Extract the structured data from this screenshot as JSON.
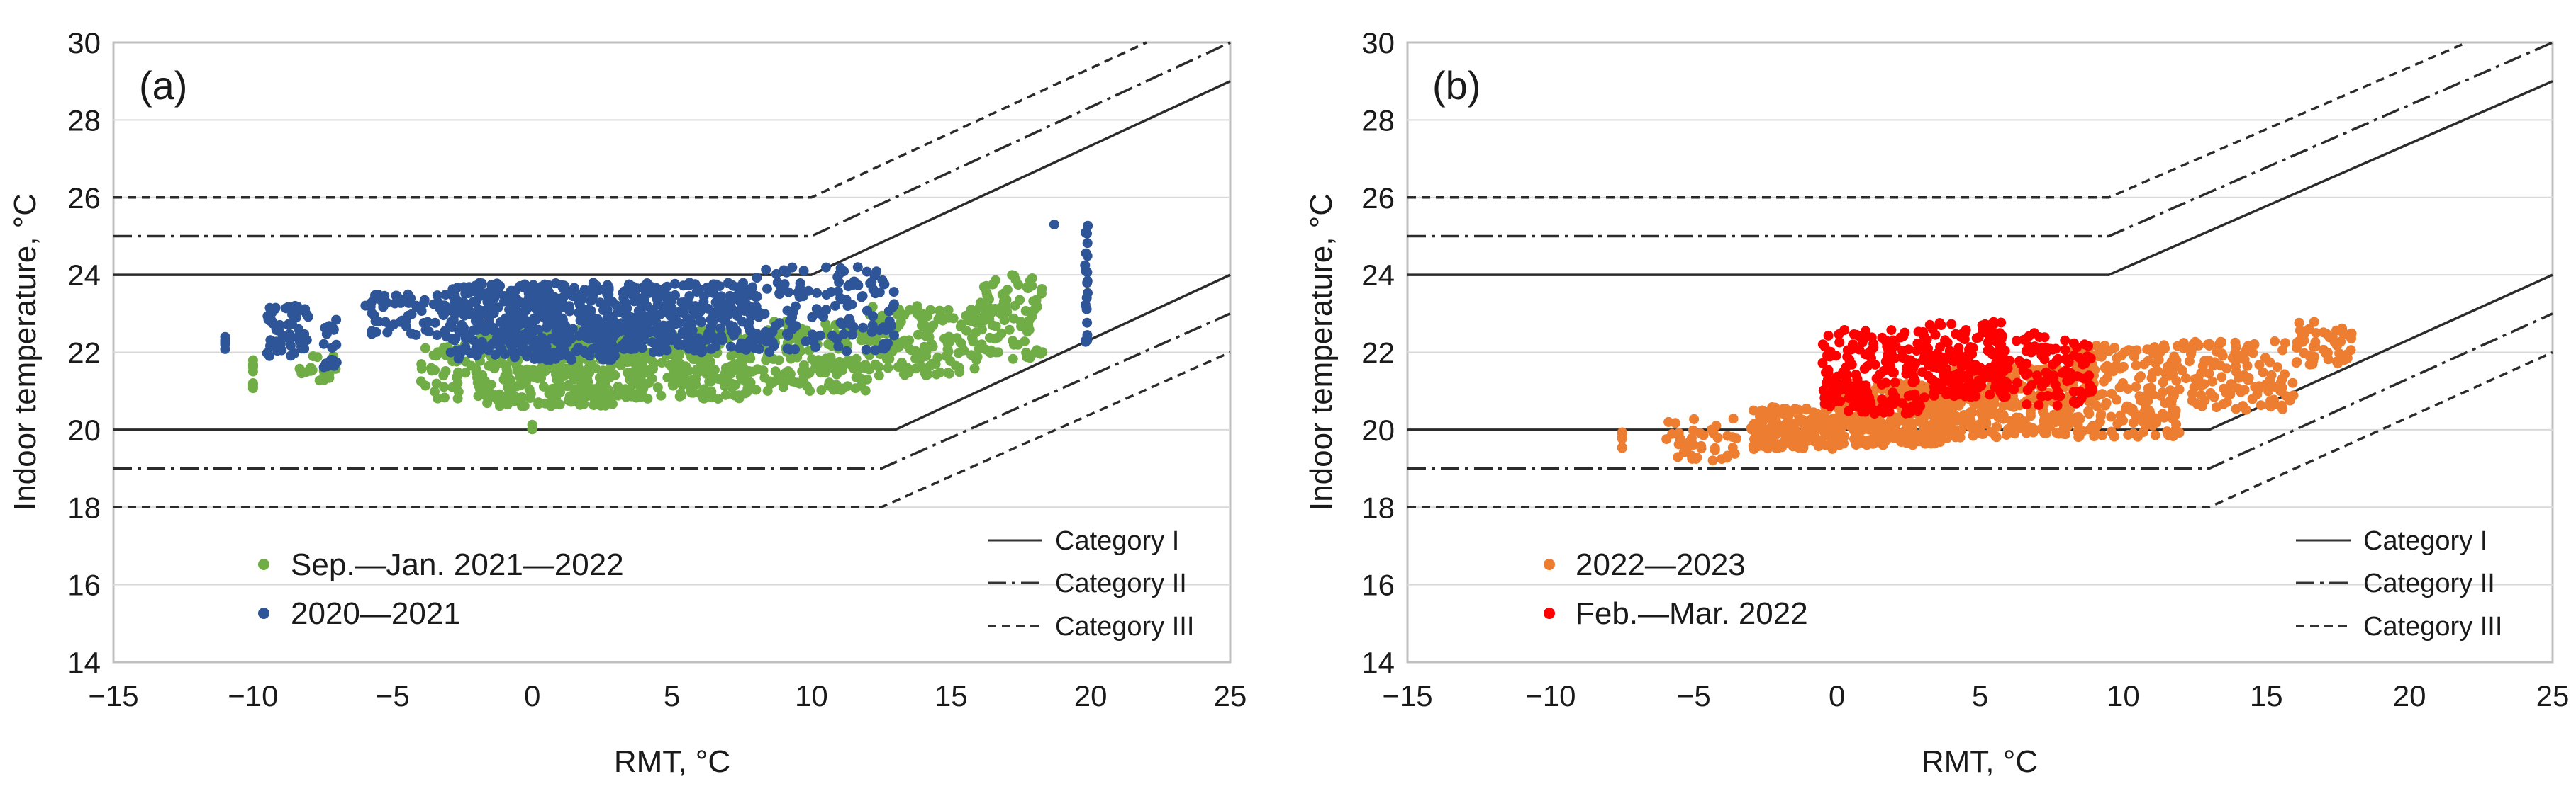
{
  "chart_data": [
    {
      "id": "a",
      "type": "scatter",
      "panel_label": "(a)",
      "xlabel": "RMT, °C",
      "ylabel": "Indoor temperature, °C",
      "xlim": [
        -15,
        25
      ],
      "ylim": [
        14,
        30
      ],
      "xticks": [
        "−15",
        "−10",
        "−5",
        "0",
        "5",
        "10",
        "15",
        "20",
        "25"
      ],
      "yticks": [
        "14",
        "16",
        "18",
        "20",
        "22",
        "24",
        "26",
        "28",
        "30"
      ],
      "lines": [
        {
          "name": "Category I",
          "style": "solid",
          "upper": [
            [
              -15,
              24
            ],
            [
              10,
              24
            ],
            [
              25,
              29
            ]
          ],
          "lower": [
            [
              -15,
              20
            ],
            [
              13,
              20
            ],
            [
              25,
              24
            ]
          ]
        },
        {
          "name": "Category II",
          "style": "dashdot",
          "upper": [
            [
              -15,
              25
            ],
            [
              10,
              25
            ],
            [
              25,
              30
            ]
          ],
          "lower": [
            [
              -15,
              19
            ],
            [
              12.5,
              19
            ],
            [
              25,
              23
            ]
          ]
        },
        {
          "name": "Category III",
          "style": "dashed",
          "upper": [
            [
              -15,
              26
            ],
            [
              10,
              26
            ],
            [
              22,
              30
            ]
          ],
          "lower": [
            [
              -15,
              18
            ],
            [
              12.5,
              18
            ],
            [
              25,
              22
            ]
          ]
        }
      ],
      "series": [
        {
          "name": "Sep.—Jan. 2021—2022",
          "color": "#70ad47",
          "clusters": [
            {
              "x": [
                -10,
                -10
              ],
              "y": [
                20.9,
                21.8
              ],
              "n": 10
            },
            {
              "x": [
                -8.5,
                -7
              ],
              "y": [
                21.2,
                22.0
              ],
              "n": 18
            },
            {
              "x": [
                -4,
                -2
              ],
              "y": [
                20.8,
                22.2
              ],
              "n": 40
            },
            {
              "x": [
                -2,
                3
              ],
              "y": [
                20.6,
                22.6
              ],
              "n": 320
            },
            {
              "x": [
                3,
                8
              ],
              "y": [
                20.8,
                22.6
              ],
              "n": 260
            },
            {
              "x": [
                8,
                12
              ],
              "y": [
                21.0,
                22.8
              ],
              "n": 160
            },
            {
              "x": [
                12,
                16
              ],
              "y": [
                21.4,
                23.2
              ],
              "n": 150
            },
            {
              "x": [
                16,
                18.3
              ],
              "y": [
                21.8,
                24.0
              ],
              "n": 90
            },
            {
              "x": [
                0,
                0
              ],
              "y": [
                19.7,
                20.2
              ],
              "n": 3
            }
          ]
        },
        {
          "name": "2020—2021",
          "color": "#2e5597",
          "clusters": [
            {
              "x": [
                -11,
                -11
              ],
              "y": [
                22.0,
                22.4
              ],
              "n": 8
            },
            {
              "x": [
                -9.5,
                -8
              ],
              "y": [
                21.9,
                23.2
              ],
              "n": 60
            },
            {
              "x": [
                -7.5,
                -7
              ],
              "y": [
                21.6,
                22.9
              ],
              "n": 20
            },
            {
              "x": [
                -6,
                -3
              ],
              "y": [
                22.4,
                23.5
              ],
              "n": 60
            },
            {
              "x": [
                -3,
                3
              ],
              "y": [
                21.8,
                23.8
              ],
              "n": 420
            },
            {
              "x": [
                3,
                8
              ],
              "y": [
                22.0,
                23.8
              ],
              "n": 320
            },
            {
              "x": [
                8,
                13
              ],
              "y": [
                22.0,
                24.2
              ],
              "n": 140
            },
            {
              "x": [
                18.7,
                18.7
              ],
              "y": [
                25.3,
                25.3
              ],
              "n": 1
            },
            {
              "x": [
                19.8,
                19.9
              ],
              "y": [
                21.8,
                25.5
              ],
              "n": 22
            }
          ]
        }
      ],
      "legend_series": [
        "Sep.—Jan. 2021—2022",
        "2020—2021"
      ],
      "legend_lines": [
        "Category I",
        "Category II",
        "Category III"
      ]
    },
    {
      "id": "b",
      "type": "scatter",
      "panel_label": "(b)",
      "xlabel": "RMT, °C",
      "ylabel": "Indoor temperature, °C",
      "xlim": [
        -15,
        25
      ],
      "ylim": [
        14,
        30
      ],
      "xticks": [
        "−15",
        "−10",
        "−5",
        "0",
        "5",
        "10",
        "15",
        "20",
        "25"
      ],
      "yticks": [
        "14",
        "16",
        "18",
        "20",
        "22",
        "24",
        "26",
        "28",
        "30"
      ],
      "lines": [
        {
          "name": "Category I",
          "style": "solid",
          "upper": [
            [
              -15,
              24
            ],
            [
              9.5,
              24
            ],
            [
              25,
              29
            ]
          ],
          "lower": [
            [
              -15,
              20
            ],
            [
              13,
              20
            ],
            [
              25,
              24
            ]
          ]
        },
        {
          "name": "Category II",
          "style": "dashdot",
          "upper": [
            [
              -15,
              25
            ],
            [
              9.5,
              25
            ],
            [
              25,
              30
            ]
          ],
          "lower": [
            [
              -15,
              19
            ],
            [
              13,
              19
            ],
            [
              25,
              23
            ]
          ]
        },
        {
          "name": "Category III",
          "style": "dashed",
          "upper": [
            [
              -15,
              26
            ],
            [
              9.5,
              26
            ],
            [
              22,
              30
            ]
          ],
          "lower": [
            [
              -15,
              18
            ],
            [
              13,
              18
            ],
            [
              25,
              22
            ]
          ]
        }
      ],
      "series": [
        {
          "name": "2022—2023",
          "color": "#ed7d31",
          "clusters": [
            {
              "x": [
                -7.5,
                -7.5
              ],
              "y": [
                19.5,
                20.1
              ],
              "n": 8
            },
            {
              "x": [
                -6,
                -3.5
              ],
              "y": [
                19.2,
                20.3
              ],
              "n": 40
            },
            {
              "x": [
                -3,
                0
              ],
              "y": [
                19.5,
                20.6
              ],
              "n": 160
            },
            {
              "x": [
                0,
                4
              ],
              "y": [
                19.6,
                21.2
              ],
              "n": 320
            },
            {
              "x": [
                4,
                8
              ],
              "y": [
                19.8,
                21.6
              ],
              "n": 260
            },
            {
              "x": [
                8,
                12
              ],
              "y": [
                19.8,
                22.2
              ],
              "n": 200
            },
            {
              "x": [
                12,
                16
              ],
              "y": [
                20.5,
                22.3
              ],
              "n": 120
            },
            {
              "x": [
                16,
                18
              ],
              "y": [
                21.6,
                22.8
              ],
              "n": 50
            }
          ]
        },
        {
          "name": "Feb.—Mar. 2022",
          "color": "#ff0000",
          "clusters": [
            {
              "x": [
                -0.5,
                3
              ],
              "y": [
                20.4,
                22.6
              ],
              "n": 180
            },
            {
              "x": [
                3,
                6
              ],
              "y": [
                20.8,
                22.8
              ],
              "n": 180
            },
            {
              "x": [
                6,
                9
              ],
              "y": [
                20.6,
                22.5
              ],
              "n": 90
            }
          ]
        }
      ],
      "legend_series": [
        "2022—2023",
        "Feb.—Mar. 2022"
      ],
      "legend_lines": [
        "Category I",
        "Category II",
        "Category III"
      ]
    }
  ]
}
